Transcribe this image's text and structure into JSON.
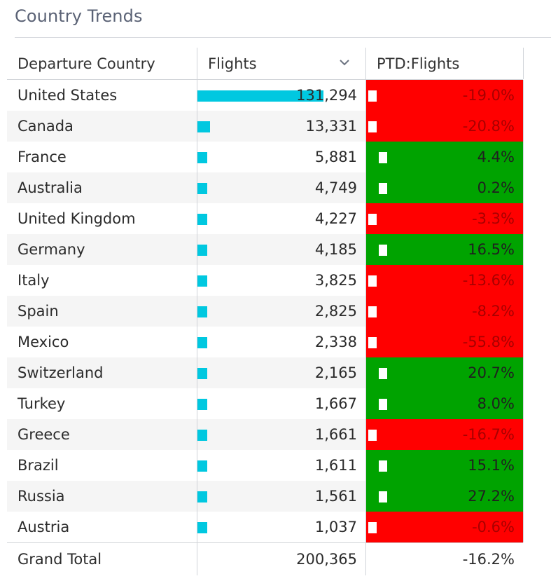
{
  "title": "Country Trends",
  "columns": {
    "country": "Departure Country",
    "flights": "Flights",
    "ptd": "PTD:Flights"
  },
  "sort_icon": "chevron-down-icon",
  "colors": {
    "bar": "#00c8e0",
    "negative": "#ff0000",
    "positive": "#00a300"
  },
  "rows": [
    {
      "country": "United States",
      "flights": 131294,
      "flights_text": "131,294",
      "ptd": -19.0,
      "ptd_text": "-19.0%"
    },
    {
      "country": "Canada",
      "flights": 13331,
      "flights_text": "13,331",
      "ptd": -20.8,
      "ptd_text": "-20.8%"
    },
    {
      "country": "France",
      "flights": 5881,
      "flights_text": "5,881",
      "ptd": 4.4,
      "ptd_text": "4.4%"
    },
    {
      "country": "Australia",
      "flights": 4749,
      "flights_text": "4,749",
      "ptd": 0.2,
      "ptd_text": "0.2%"
    },
    {
      "country": "United Kingdom",
      "flights": 4227,
      "flights_text": "4,227",
      "ptd": -3.3,
      "ptd_text": "-3.3%"
    },
    {
      "country": "Germany",
      "flights": 4185,
      "flights_text": "4,185",
      "ptd": 16.5,
      "ptd_text": "16.5%"
    },
    {
      "country": "Italy",
      "flights": 3825,
      "flights_text": "3,825",
      "ptd": -13.6,
      "ptd_text": "-13.6%"
    },
    {
      "country": "Spain",
      "flights": 2825,
      "flights_text": "2,825",
      "ptd": -8.2,
      "ptd_text": "-8.2%"
    },
    {
      "country": "Mexico",
      "flights": 2338,
      "flights_text": "2,338",
      "ptd": -55.8,
      "ptd_text": "-55.8%"
    },
    {
      "country": "Switzerland",
      "flights": 2165,
      "flights_text": "2,165",
      "ptd": 20.7,
      "ptd_text": "20.7%"
    },
    {
      "country": "Turkey",
      "flights": 1667,
      "flights_text": "1,667",
      "ptd": 8.0,
      "ptd_text": "8.0%"
    },
    {
      "country": "Greece",
      "flights": 1661,
      "flights_text": "1,661",
      "ptd": -16.7,
      "ptd_text": "-16.7%"
    },
    {
      "country": "Brazil",
      "flights": 1611,
      "flights_text": "1,611",
      "ptd": 15.1,
      "ptd_text": "15.1%"
    },
    {
      "country": "Russia",
      "flights": 1561,
      "flights_text": "1,561",
      "ptd": 27.2,
      "ptd_text": "27.2%"
    },
    {
      "country": "Austria",
      "flights": 1037,
      "flights_text": "1,037",
      "ptd": -0.6,
      "ptd_text": "-0.6%"
    }
  ],
  "total": {
    "label": "Grand Total",
    "flights_text": "200,365",
    "ptd_text": "-16.2%"
  }
}
